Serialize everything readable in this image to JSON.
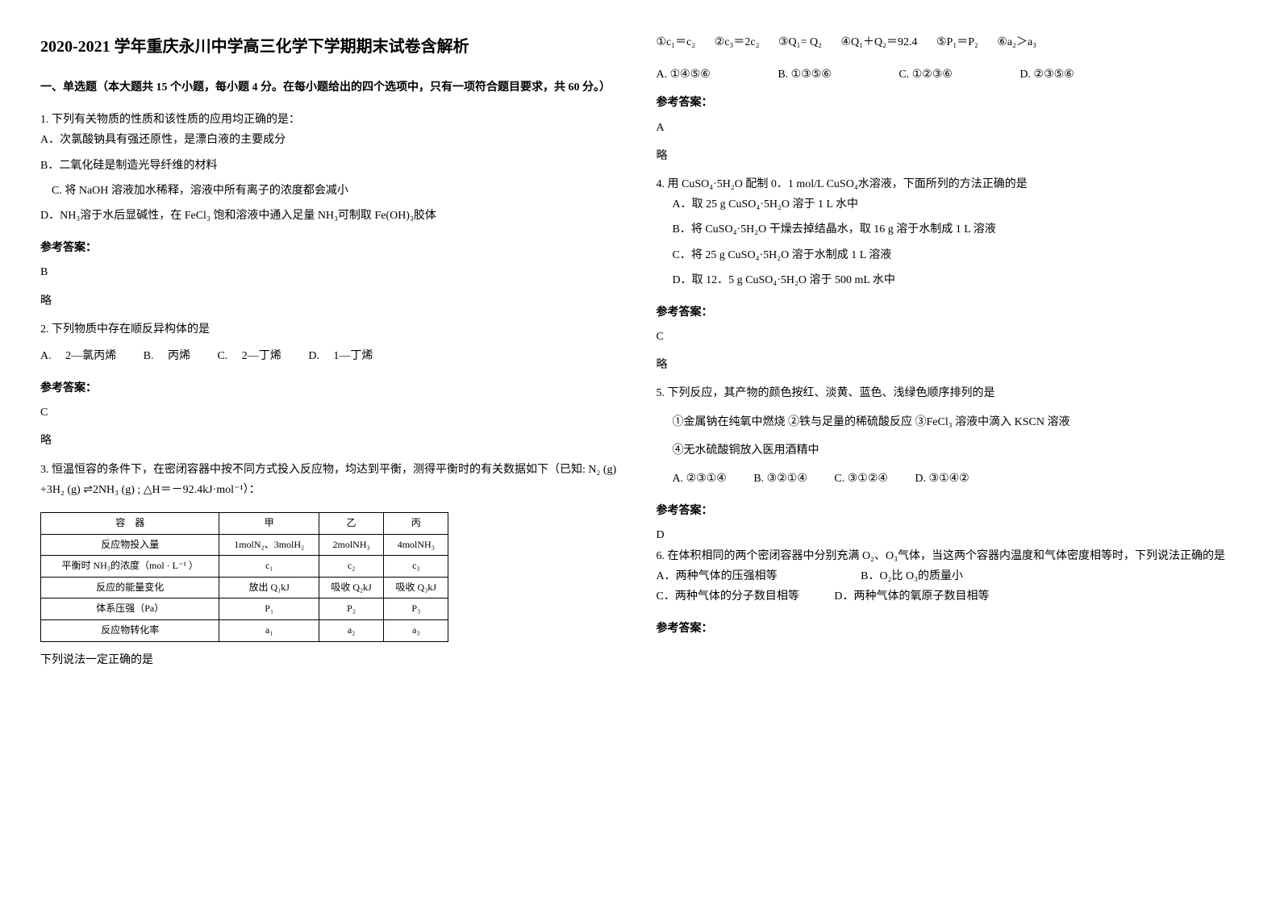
{
  "title": "2020-2021 学年重庆永川中学高三化学下学期期末试卷含解析",
  "section1": {
    "header": "一、单选题（本大题共 15 个小题，每小题 4 分。在每小题给出的四个选项中，只有一项符合题目要求，共 60 分。）"
  },
  "q1": {
    "stem": "1. 下列有关物质的性质和该性质的应用均正确的是：",
    "A": "A．次氯酸钠具有强还原性，是漂白液的主要成分",
    "B": "B．二氧化硅是制造光导纤维的材料",
    "C": "　C. 将 NaOH 溶液加水稀释，溶液中所有离子的浓度都会减小",
    "D": "D．NH₃溶于水后显碱性，在 FeCl₃ 饱和溶液中通入足量 NH₃可制取 Fe(OH)₃胶体",
    "answerLabel": "参考答案：",
    "answer": "B",
    "note": "略"
  },
  "q2": {
    "stem": "2. 下列物质中存在顺反异构体的是",
    "A": "A.　 2—氯丙烯",
    "B": "B.　 丙烯",
    "C": "C.　 2—丁烯",
    "D": "D.　 1—丁烯",
    "answerLabel": "参考答案：",
    "answer": "C",
    "note": "略"
  },
  "q3": {
    "stem": "3. 恒温恒容的条件下，在密闭容器中按不同方式投入反应物，均达到平衡，测得平衡时的有关数据如下（已知: N₂ (g) +3H₂ (g) ⇌2NH₃ (g) ; △H＝－92.4kJ·mol⁻¹）：",
    "tableHeaders": [
      "容　器",
      "甲",
      "乙",
      "丙"
    ],
    "tableRows": [
      [
        "反应物投入量",
        "1molN₂、3molH₂",
        "2molNH₃",
        "4molNH₃"
      ],
      [
        "平衡时 NH₃的浓度（mol · L⁻¹ ）",
        "c₁",
        "c₂",
        "c₃"
      ],
      [
        "反应的能量变化",
        "放出 Q₁kJ",
        "吸收 Q₂kJ",
        "吸收 Q₃kJ"
      ],
      [
        "体系压强（Pa）",
        "P₁",
        "P₂",
        "P₃"
      ],
      [
        "反应物转化率",
        "a₁",
        "a₂",
        "a₃"
      ]
    ],
    "tail": "下列说法一定正确的是"
  },
  "topRow": {
    "items": [
      "①c₁＝c₂",
      "②c₃＝2c₂",
      "③Q₁= Q₂",
      "④Q₁＋Q₂＝92.4",
      "⑤P₁＝P₂",
      "⑥a₂＞a₃"
    ]
  },
  "q3opts": {
    "A": "A.  ①④⑤⑥",
    "B": "B.  ①③⑤⑥",
    "C": "C.  ①②③⑥",
    "D": "D.  ②③⑤⑥",
    "answerLabel": "参考答案：",
    "answer": "A",
    "note": "略"
  },
  "q4": {
    "stem": "4. 用 CuSO₄·5H₂O 配制 0．1 mol/L CuSO₄水溶液，下面所列的方法正确的是",
    "A": "A．取 25 g CuSO₄·5H₂O 溶于 1 L 水中",
    "B": "B．将 CuSO₄·5H₂O 干燥去掉结晶水，取 16 g 溶于水制成 1 L 溶液",
    "C": "C．将 25 g CuSO₄·5H₂O 溶于水制成 1 L 溶液",
    "D": "D．取 12．5 g CuSO₄·5H₂O 溶于 500 mL 水中",
    "answerLabel": "参考答案：",
    "answer": "C",
    "note": "略"
  },
  "q5": {
    "stem": "5. 下列反应，其产物的颜色按红、淡黄、蓝色、浅绿色顺序排列的是",
    "line1": "①金属钠在纯氧中燃烧  ②铁与足量的稀硫酸反应  ③FeCl₃ 溶液中滴入 KSCN 溶液",
    "line2": "④无水硫酸铜放入医用酒精中",
    "A": "A.  ②③①④",
    "B": "B.  ③②①④",
    "C": "C.  ③①②④",
    "D": "D.  ③①④②",
    "answerLabel": "参考答案：",
    "answer": "D"
  },
  "q6": {
    "stem": "6. 在体积相同的两个密闭容器中分别充满 O₂、O₃气体，当这两个容器内温度和气体密度相等时，下列说法正确的是",
    "A": "A．两种气体的压强相等",
    "B": "B．O₂比 O₃的质量小",
    "C": "C．两种气体的分子数目相等",
    "D": "D．两种气体的氧原子数目相等",
    "answerLabel": "参考答案："
  }
}
